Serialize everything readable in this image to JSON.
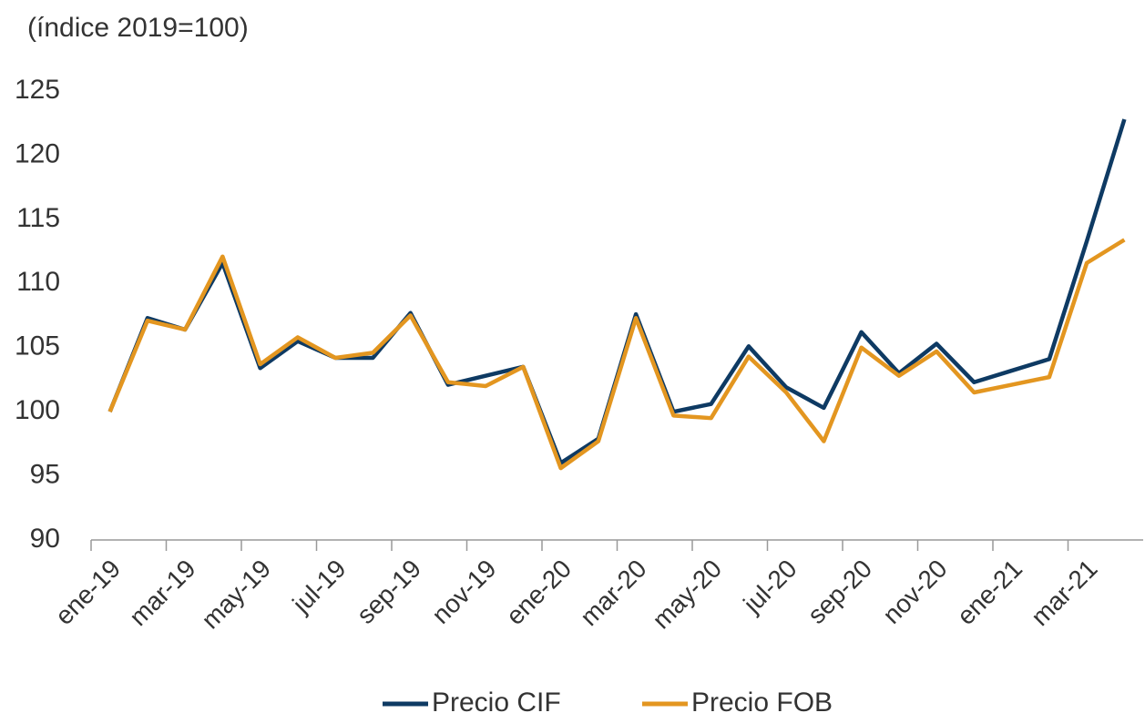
{
  "chart_data": {
    "type": "line",
    "subtitle": "(índice 2019=100)",
    "categories": [
      "ene-19",
      null,
      "mar-19",
      null,
      "may-19",
      null,
      "jul-19",
      null,
      "sep-19",
      null,
      "nov-19",
      null,
      "ene-20",
      null,
      "mar-20",
      null,
      "may-20",
      null,
      "jul-20",
      null,
      "sep-20",
      null,
      "nov-20",
      null,
      "ene-21",
      null,
      "mar-21",
      null
    ],
    "series": [
      {
        "name": "Precio CIF",
        "color": "#0e3a63",
        "values": [
          100,
          107.3,
          106.4,
          111.6,
          103.4,
          105.5,
          104.2,
          104.2,
          107.7,
          102.1,
          102.8,
          103.5,
          96,
          97.9,
          107.6,
          100,
          100.6,
          105.1,
          101.9,
          100.3,
          106.2,
          103,
          105.3,
          102.3,
          103.2,
          104.1,
          113.3,
          122.8
        ]
      },
      {
        "name": "Precio FOB",
        "color": "#e39620",
        "values": [
          100,
          107.1,
          106.4,
          112.1,
          103.7,
          105.8,
          104.2,
          104.6,
          107.5,
          102.3,
          102,
          103.5,
          95.6,
          97.7,
          107.3,
          99.7,
          99.5,
          104.3,
          101.5,
          97.7,
          105,
          102.8,
          104.7,
          101.5,
          102.1,
          102.7,
          111.6,
          113.4
        ]
      }
    ],
    "ylim": [
      90,
      125
    ],
    "yticks": [
      90,
      95,
      100,
      105,
      110,
      115,
      120,
      125
    ],
    "grid": false,
    "legend": "bottom"
  }
}
